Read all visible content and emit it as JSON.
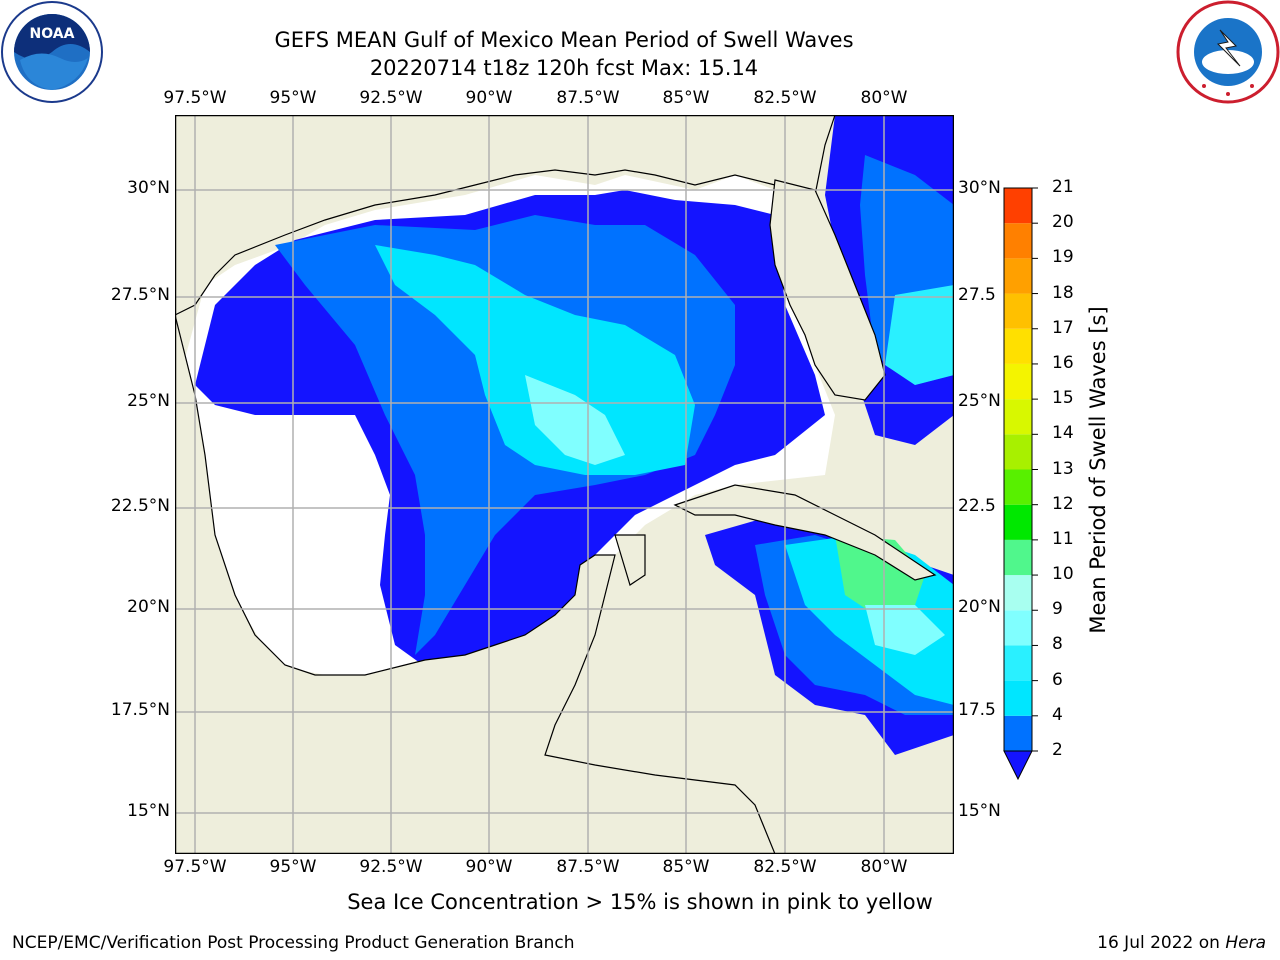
{
  "title": {
    "line1": "GEFS MEAN Gulf of Mexico Mean Period of Swell Waves",
    "line2": "20220714 t18z 120h fcst   Max: 15.14"
  },
  "logos": {
    "left": "noaa-logo",
    "right": "national-weather-service-logo"
  },
  "map": {
    "lon_labels": [
      "97.5°W",
      "95°W",
      "92.5°W",
      "90°W",
      "87.5°W",
      "85°W",
      "82.5°W",
      "80°W"
    ],
    "lat_labels_left": [
      "30°N",
      "27.5°N",
      "25°N",
      "22.5°N",
      "20°N",
      "17.5°N",
      "15°N"
    ],
    "lat_labels_right": [
      "30°N",
      "27.5",
      "25°N",
      "22.5",
      "20°N",
      "17.5",
      "15°N"
    ],
    "colors": {
      "land": "#eeeedc",
      "ocean_nodata": "#ffffff",
      "grid": "#b0b0b0",
      "coast": "#000000"
    }
  },
  "colorbar": {
    "label": "Mean Period of Swell Waves [s]",
    "ticks": [
      "2",
      "4",
      "6",
      "8",
      "9",
      "10",
      "11",
      "12",
      "13",
      "14",
      "15",
      "16",
      "17",
      "18",
      "19",
      "20",
      "21"
    ],
    "colors": [
      "#0072ff",
      "#00e6ff",
      "#2af0ff",
      "#80ffff",
      "#a8fff0",
      "#50f78c",
      "#00e800",
      "#58f000",
      "#a8f000",
      "#d8f800",
      "#f4f400",
      "#ffe000",
      "#ffc000",
      "#ffa000",
      "#ff8000",
      "#ff4000",
      "#ff1000",
      "#ff0000"
    ],
    "under_color": "#1414ff"
  },
  "note": "Sea Ice Concentration > 15% is shown in pink to yellow",
  "footer": {
    "left": "NCEP/EMC/Verification Post Processing Product Generation Branch",
    "right_date": "16 Jul 2022 on ",
    "right_host": "Hera"
  }
}
